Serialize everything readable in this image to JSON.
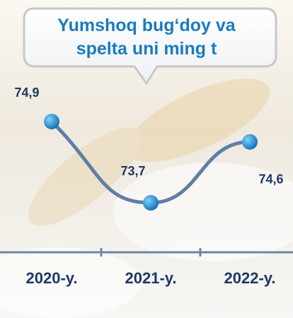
{
  "chart_data": {
    "type": "line",
    "title": "Yumshoq bug‘doy va spelta uni ming t",
    "categories": [
      "2020-y.",
      "2021-y.",
      "2022-y."
    ],
    "values": [
      74.9,
      73.7,
      74.6
    ],
    "value_labels": [
      "74,9",
      "73,7",
      "74,6"
    ],
    "color": "#5f7ea6",
    "marker_color": "#1b8ad3"
  }
}
